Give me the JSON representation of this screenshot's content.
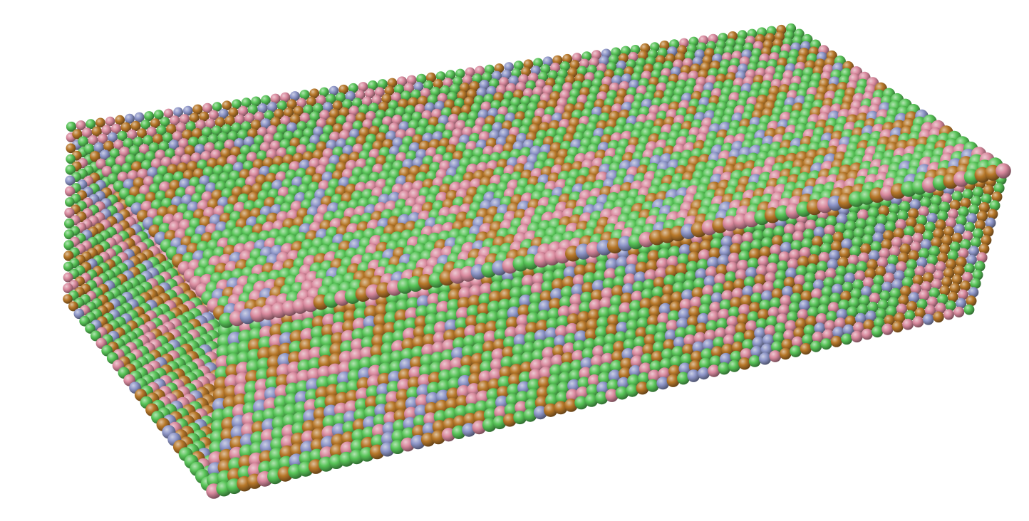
{
  "scene": {
    "subject": "atomic-lattice-slab",
    "background_color": "#ffffff",
    "atom_colors": {
      "green": "#58c458",
      "pink": "#d98a9e",
      "blue": "#8e96c8",
      "orange": "#b7782a"
    }
  }
}
